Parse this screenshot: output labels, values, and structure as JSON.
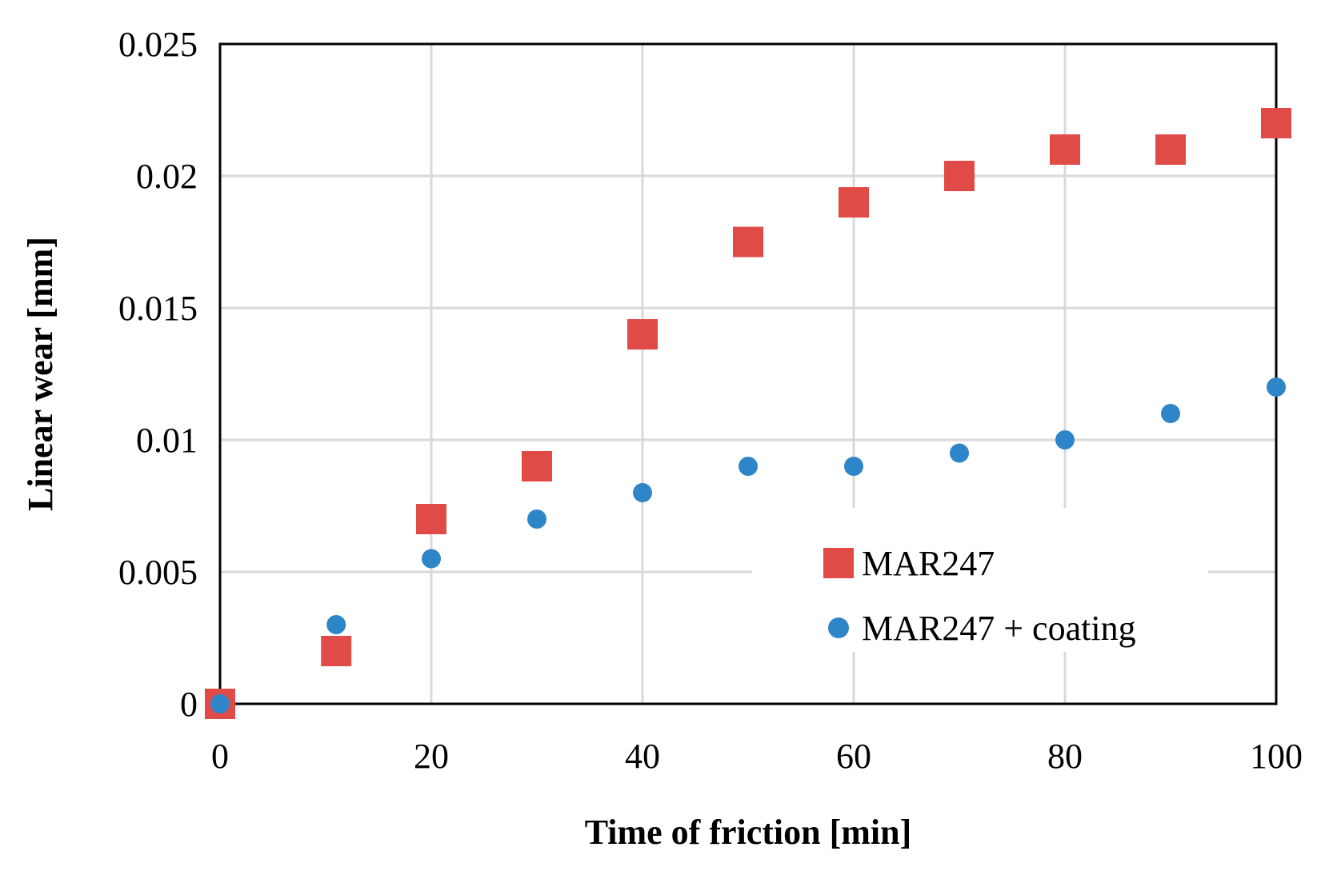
{
  "chart_data": {
    "type": "scatter",
    "title": "",
    "xlabel": "Time of friction [min]",
    "ylabel": "Linear wear [mm]",
    "xlim": [
      0,
      100
    ],
    "ylim": [
      0,
      0.025
    ],
    "x_ticks": [
      0,
      20,
      40,
      60,
      80,
      100
    ],
    "x_tick_labels": [
      "0",
      "20",
      "40",
      "60",
      "80",
      "100"
    ],
    "y_ticks": [
      0,
      0.005,
      0.01,
      0.015,
      0.02,
      0.025
    ],
    "y_tick_labels": [
      "0",
      "0.005",
      "0.01",
      "0.015",
      "0.02",
      "0.025"
    ],
    "grid": true,
    "legend_position": "bottom-right",
    "series": [
      {
        "name": "MAR247",
        "marker": "square",
        "color": "#e04b47",
        "x": [
          0,
          11,
          20,
          30,
          40,
          50,
          60,
          70,
          80,
          90,
          100
        ],
        "y": [
          0,
          0.002,
          0.007,
          0.009,
          0.014,
          0.0175,
          0.019,
          0.02,
          0.021,
          0.021,
          0.022
        ]
      },
      {
        "name": "MAR247 + coating",
        "marker": "circle",
        "color": "#2e86c9",
        "x": [
          0,
          11,
          20,
          30,
          40,
          50,
          60,
          70,
          80,
          90,
          100
        ],
        "y": [
          0,
          0.003,
          0.0055,
          0.007,
          0.008,
          0.009,
          0.009,
          0.0095,
          0.01,
          0.011,
          0.012
        ]
      }
    ]
  }
}
